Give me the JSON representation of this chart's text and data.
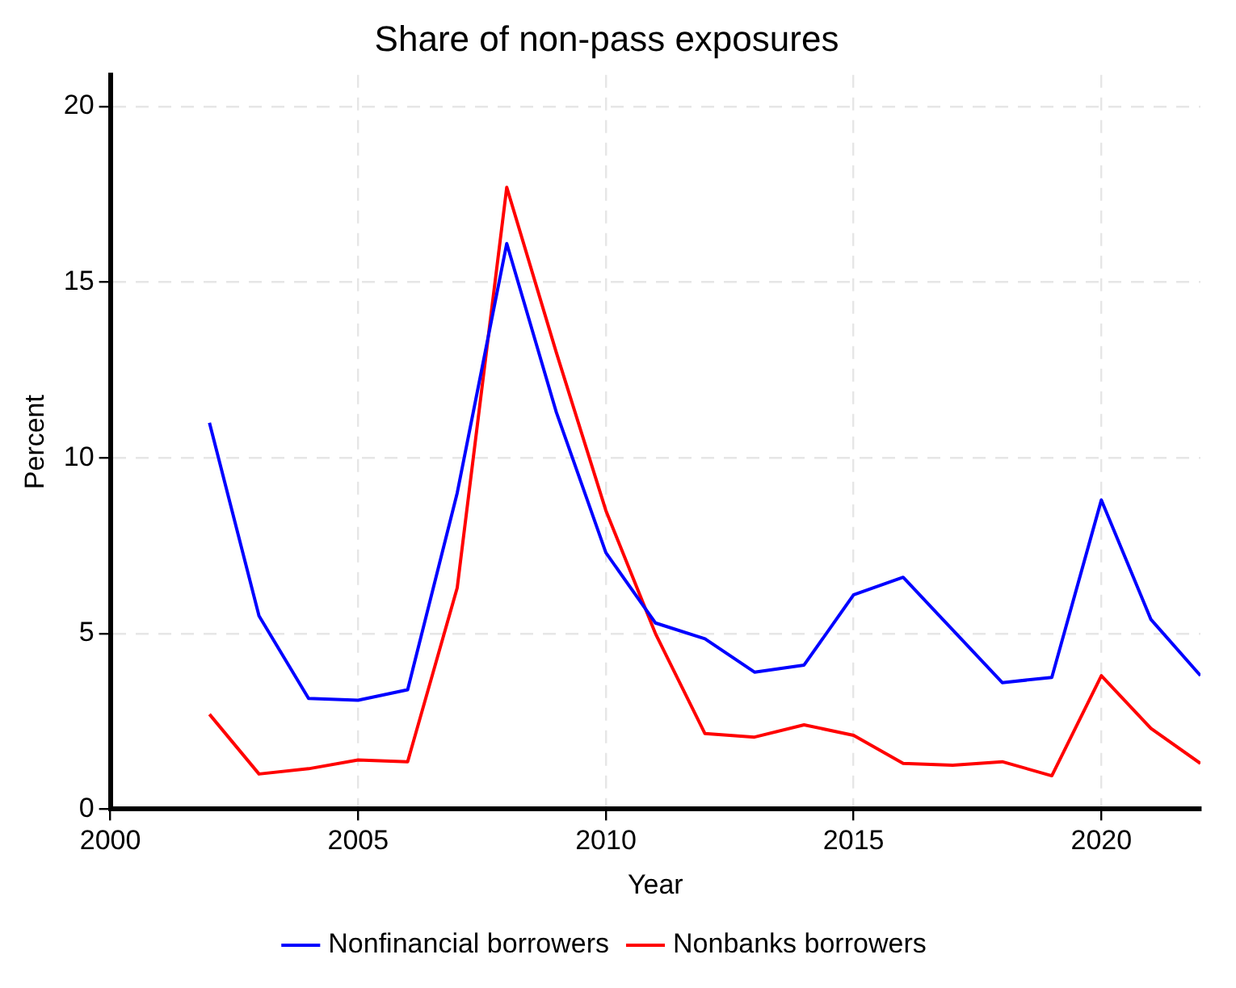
{
  "chart_data": {
    "type": "line",
    "title": "Share of non-pass exposures",
    "xlabel": "Year",
    "ylabel": "Percent",
    "x": [
      2002,
      2003,
      2004,
      2005,
      2006,
      2007,
      2008,
      2009,
      2010,
      2011,
      2012,
      2013,
      2014,
      2015,
      2016,
      2017,
      2018,
      2019,
      2020,
      2021,
      2022
    ],
    "series": [
      {
        "name": "Nonfinancial borrowers",
        "color": "#0000ff",
        "values": [
          11.0,
          5.5,
          3.15,
          3.1,
          3.4,
          9.0,
          16.1,
          11.3,
          7.3,
          5.3,
          4.85,
          3.9,
          4.1,
          6.1,
          6.6,
          5.1,
          3.6,
          3.75,
          8.8,
          5.4,
          3.8
        ]
      },
      {
        "name": "Nonbanks borrowers",
        "color": "#ff0000",
        "values": [
          2.7,
          1.0,
          1.15,
          1.4,
          1.35,
          6.3,
          17.7,
          13.0,
          8.5,
          5.0,
          2.15,
          2.05,
          2.4,
          2.1,
          1.3,
          1.25,
          1.35,
          0.95,
          3.8,
          2.3,
          1.3
        ]
      }
    ],
    "xlim": [
      2000,
      2022
    ],
    "xticks": [
      2000,
      2005,
      2010,
      2015,
      2020
    ],
    "ylim": [
      0,
      20.9
    ],
    "yticks": [
      0,
      5,
      10,
      15,
      20
    ],
    "grid": true,
    "legend": "bottom",
    "marker": "none",
    "line_style": "solid"
  }
}
